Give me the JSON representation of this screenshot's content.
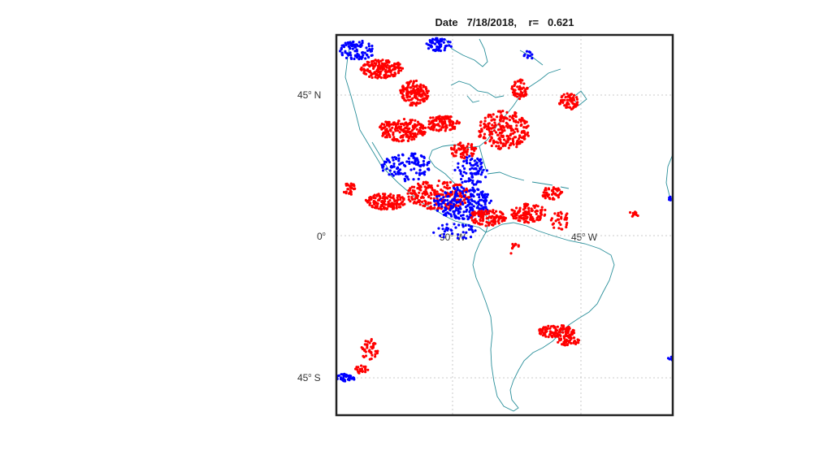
{
  "title": {
    "date_label": "Date",
    "date": "7/18/2018,",
    "r_label": "r=",
    "r_value": "0.621"
  },
  "lat_labels": [
    {
      "deg": "45",
      "dir": "N"
    },
    {
      "deg": "0",
      "dir": ""
    },
    {
      "deg": "45",
      "dir": "S"
    }
  ],
  "lon_labels": [
    {
      "deg": "90",
      "dir": "W"
    },
    {
      "deg": "45",
      "dir": "W"
    }
  ],
  "colors": {
    "red_series": "#ff0000",
    "blue_series": "#0000ff",
    "coastline": "#2a8f9a",
    "frame": "#222222",
    "grid": "#bbbbbb"
  },
  "map": {
    "projection": "mercator-like",
    "grid": "dotted",
    "lon_range_deg": [
      -115,
      -15
    ],
    "lat_range_deg": [
      -50,
      55
    ]
  }
}
